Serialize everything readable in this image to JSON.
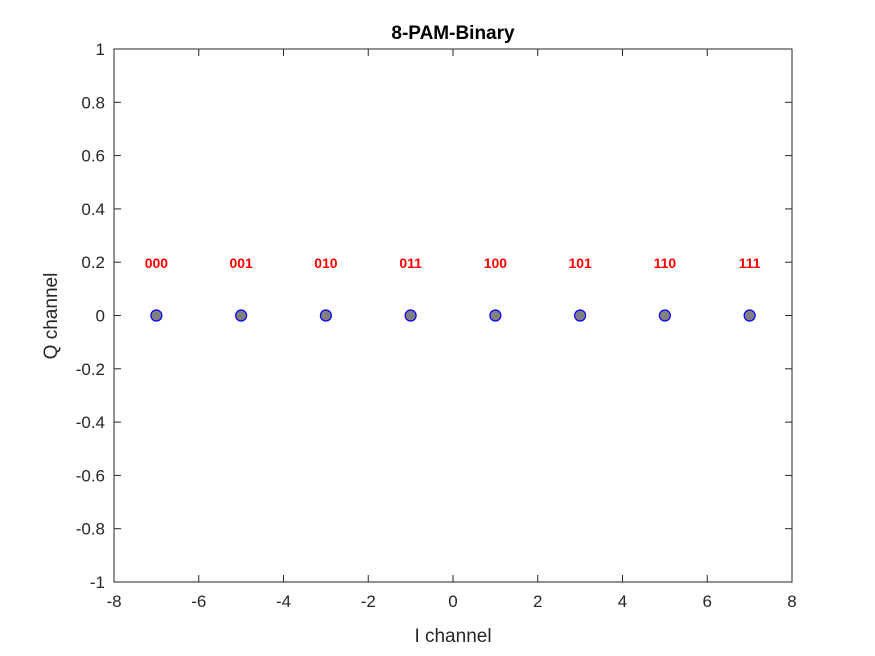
{
  "chart_data": {
    "type": "scatter",
    "title": "8-PAM-Binary",
    "xlabel": "I channel",
    "ylabel": "Q channel",
    "xlim": [
      -8,
      8
    ],
    "ylim": [
      -1,
      1
    ],
    "xticks": [
      -8,
      -6,
      -4,
      -2,
      0,
      2,
      4,
      6,
      8
    ],
    "yticks": [
      -1,
      -0.8,
      -0.6,
      -0.4,
      -0.2,
      0,
      0.2,
      0.4,
      0.6,
      0.8,
      1
    ],
    "xtick_labels": [
      "-8",
      "-6",
      "-4",
      "-2",
      "0",
      "2",
      "4",
      "6",
      "8"
    ],
    "ytick_labels": [
      "-1",
      "-0.8",
      "-0.6",
      "-0.4",
      "-0.2",
      "0",
      "0.2",
      "0.4",
      "0.6",
      "0.8",
      "1"
    ],
    "grid": false,
    "points": [
      {
        "x": -7,
        "y": 0,
        "label": "000"
      },
      {
        "x": -5,
        "y": 0,
        "label": "001"
      },
      {
        "x": -3,
        "y": 0,
        "label": "010"
      },
      {
        "x": -1,
        "y": 0,
        "label": "011"
      },
      {
        "x": 1,
        "y": 0,
        "label": "100"
      },
      {
        "x": 3,
        "y": 0,
        "label": "101"
      },
      {
        "x": 5,
        "y": 0,
        "label": "110"
      },
      {
        "x": 7,
        "y": 0,
        "label": "111"
      }
    ],
    "label_y": 0.2,
    "colors": {
      "marker_fill": "#808080",
      "marker_edge": "#0000ff",
      "label": "#ff0000",
      "axis": "#262626"
    }
  }
}
